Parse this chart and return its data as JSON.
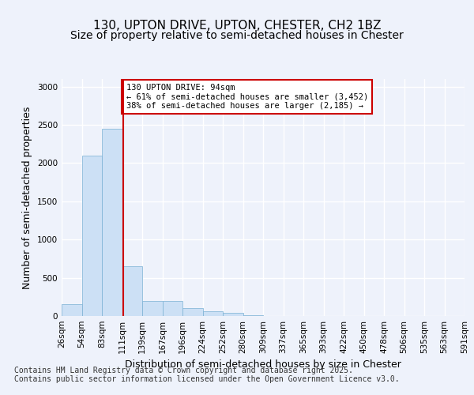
{
  "title_line1": "130, UPTON DRIVE, UPTON, CHESTER, CH2 1BZ",
  "title_line2": "Size of property relative to semi-detached houses in Chester",
  "xlabel": "Distribution of semi-detached houses by size in Chester",
  "ylabel": "Number of semi-detached properties",
  "bin_labels": [
    "26sqm",
    "54sqm",
    "83sqm",
    "111sqm",
    "139sqm",
    "167sqm",
    "196sqm",
    "224sqm",
    "252sqm",
    "280sqm",
    "309sqm",
    "337sqm",
    "365sqm",
    "393sqm",
    "422sqm",
    "450sqm",
    "478sqm",
    "506sqm",
    "535sqm",
    "563sqm",
    "591sqm"
  ],
  "bar_heights": [
    150,
    2100,
    2450,
    650,
    200,
    200,
    100,
    60,
    40,
    15,
    5,
    0,
    0,
    0,
    0,
    0,
    0,
    0,
    0,
    0
  ],
  "bar_color": "#cce0f5",
  "bar_edge_color": "#7ab0d4",
  "vline_x": 2.55,
  "vline_color": "#cc0000",
  "annotation_text": "130 UPTON DRIVE: 94sqm\n← 61% of semi-detached houses are smaller (3,452)\n38% of semi-detached houses are larger (2,185) →",
  "annotation_box_color": "#ffffff",
  "annotation_box_edge_color": "#cc0000",
  "ylim": [
    0,
    3100
  ],
  "yticks": [
    0,
    500,
    1000,
    1500,
    2000,
    2500,
    3000
  ],
  "footer_line1": "Contains HM Land Registry data © Crown copyright and database right 2025.",
  "footer_line2": "Contains public sector information licensed under the Open Government Licence v3.0.",
  "background_color": "#eef2fb",
  "plot_bg_color": "#eef2fb",
  "grid_color": "#ffffff",
  "title_fontsize": 11,
  "subtitle_fontsize": 10,
  "axis_label_fontsize": 9,
  "tick_fontsize": 7.5,
  "footer_fontsize": 7
}
